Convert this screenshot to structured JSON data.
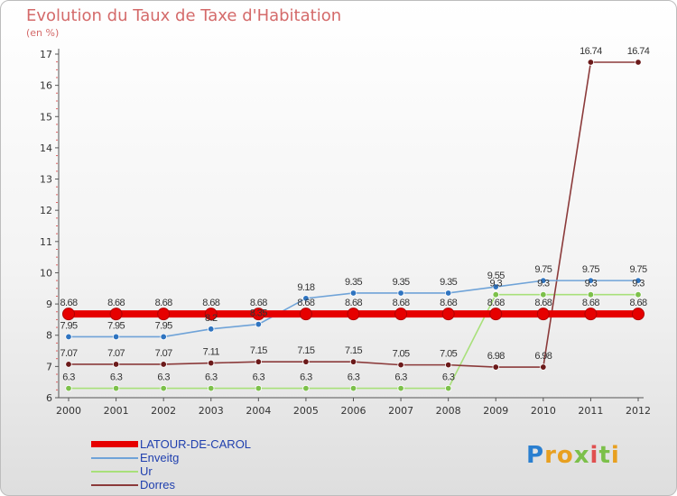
{
  "header": {
    "title": "Evolution du Taux de Taxe d'Habitation",
    "subtitle": "(en %)"
  },
  "logo": {
    "letters": [
      "P",
      "r",
      "o",
      "x",
      "i",
      "t",
      "i"
    ],
    "colors": [
      "#2a7fd0",
      "#e8a020",
      "#e8a020",
      "#7cc04a",
      "#e05050",
      "#7cc04a",
      "#e8a020"
    ]
  },
  "chart_data": {
    "type": "line",
    "title": "Evolution du Taux de Taxe d'Habitation",
    "subtitle": "(en %)",
    "x": [
      "2000",
      "2001",
      "2002",
      "2003",
      "2004",
      "2005",
      "2006",
      "2007",
      "2008",
      "2009",
      "2010",
      "2011",
      "2012"
    ],
    "ylim": [
      6,
      17
    ],
    "yticks": [
      "6",
      "7",
      "8",
      "9",
      "10",
      "11",
      "12",
      "13",
      "14",
      "15",
      "16",
      "17"
    ],
    "grid": false,
    "legend_position": "bottom-left",
    "series": [
      {
        "name": "LATOUR-DE-CAROL",
        "color": "#e60000",
        "thick": true,
        "values": [
          8.68,
          8.68,
          8.68,
          8.68,
          8.68,
          8.68,
          8.68,
          8.68,
          8.68,
          8.68,
          8.68,
          8.68,
          8.68
        ],
        "labels": [
          "8.68",
          "8.68",
          "8.68",
          "8.68",
          "8.68",
          "8.68",
          "8.68",
          "8.68",
          "8.68",
          "8.68",
          "8.68",
          "8.68",
          "8.68"
        ]
      },
      {
        "name": "Enveitg",
        "color": "#6fa3d8",
        "marker": "#2f74c0",
        "values": [
          7.95,
          7.95,
          7.95,
          8.2,
          8.35,
          9.18,
          9.35,
          9.35,
          9.35,
          9.55,
          9.75,
          9.75,
          9.75
        ],
        "labels": [
          "7.95",
          "7.95",
          "7.95",
          "8.2",
          "8.35",
          "9.18",
          "9.35",
          "9.35",
          "9.35",
          "9.55",
          "9.75",
          "9.75",
          "9.75"
        ]
      },
      {
        "name": "Ur",
        "color": "#a8e07a",
        "marker": "#7cc04a",
        "values": [
          6.3,
          6.3,
          6.3,
          6.3,
          6.3,
          6.3,
          6.3,
          6.3,
          6.3,
          9.3,
          9.3,
          9.3,
          9.3
        ],
        "labels": [
          "6.3",
          "6.3",
          "6.3",
          "6.3",
          "6.3",
          "6.3",
          "6.3",
          "6.3",
          "6.3",
          "9.3",
          "9.3",
          "9.3",
          "9.3"
        ]
      },
      {
        "name": "Dorres",
        "color": "#8b3a3a",
        "marker": "#6b1a1a",
        "values": [
          7.07,
          7.07,
          7.07,
          7.11,
          7.15,
          7.15,
          7.15,
          7.05,
          7.05,
          6.98,
          6.98,
          16.74,
          16.74
        ],
        "labels": [
          "7.07",
          "7.07",
          "7.07",
          "7.11",
          "7.15",
          "7.15",
          "7.15",
          "7.05",
          "7.05",
          "6.98",
          "6.98",
          "16.74",
          "16.74"
        ]
      }
    ]
  }
}
